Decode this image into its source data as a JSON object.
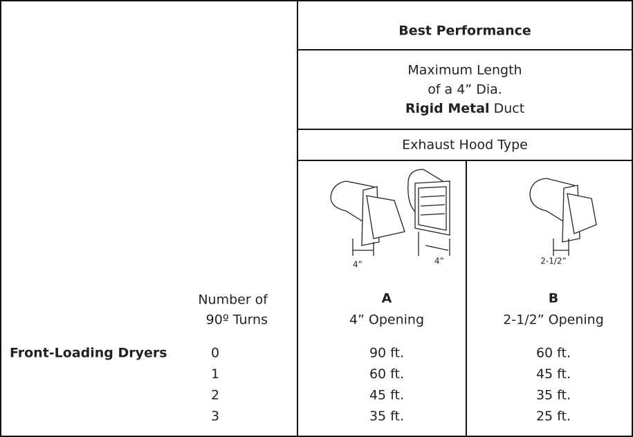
{
  "header": {
    "title": "Best Performance",
    "subtitle": [
      "Maximum Length",
      "of a 4” Dia."
    ],
    "material": {
      "bold": "Rigid Metal",
      "rest": "Duct"
    },
    "hood_type": "Exhaust Hood Type"
  },
  "hoods": [
    {
      "label": "A",
      "opening": "4” Opening",
      "dimensions": [
        "4”",
        "4”"
      ]
    },
    {
      "label": "B",
      "opening": "2-1/2” Opening",
      "dimensions": [
        "2-1/2”"
      ]
    }
  ],
  "turns_header": [
    "Number of",
    "90º Turns"
  ],
  "row_group": "Front-Loading Dryers",
  "rows": [
    {
      "turns": "0",
      "a": "90 ft.",
      "b": "60 ft."
    },
    {
      "turns": "1",
      "a": "60 ft.",
      "b": "45 ft."
    },
    {
      "turns": "2",
      "a": "45 ft.",
      "b": "35 ft."
    },
    {
      "turns": "3",
      "a": "35 ft.",
      "b": "25 ft."
    }
  ]
}
